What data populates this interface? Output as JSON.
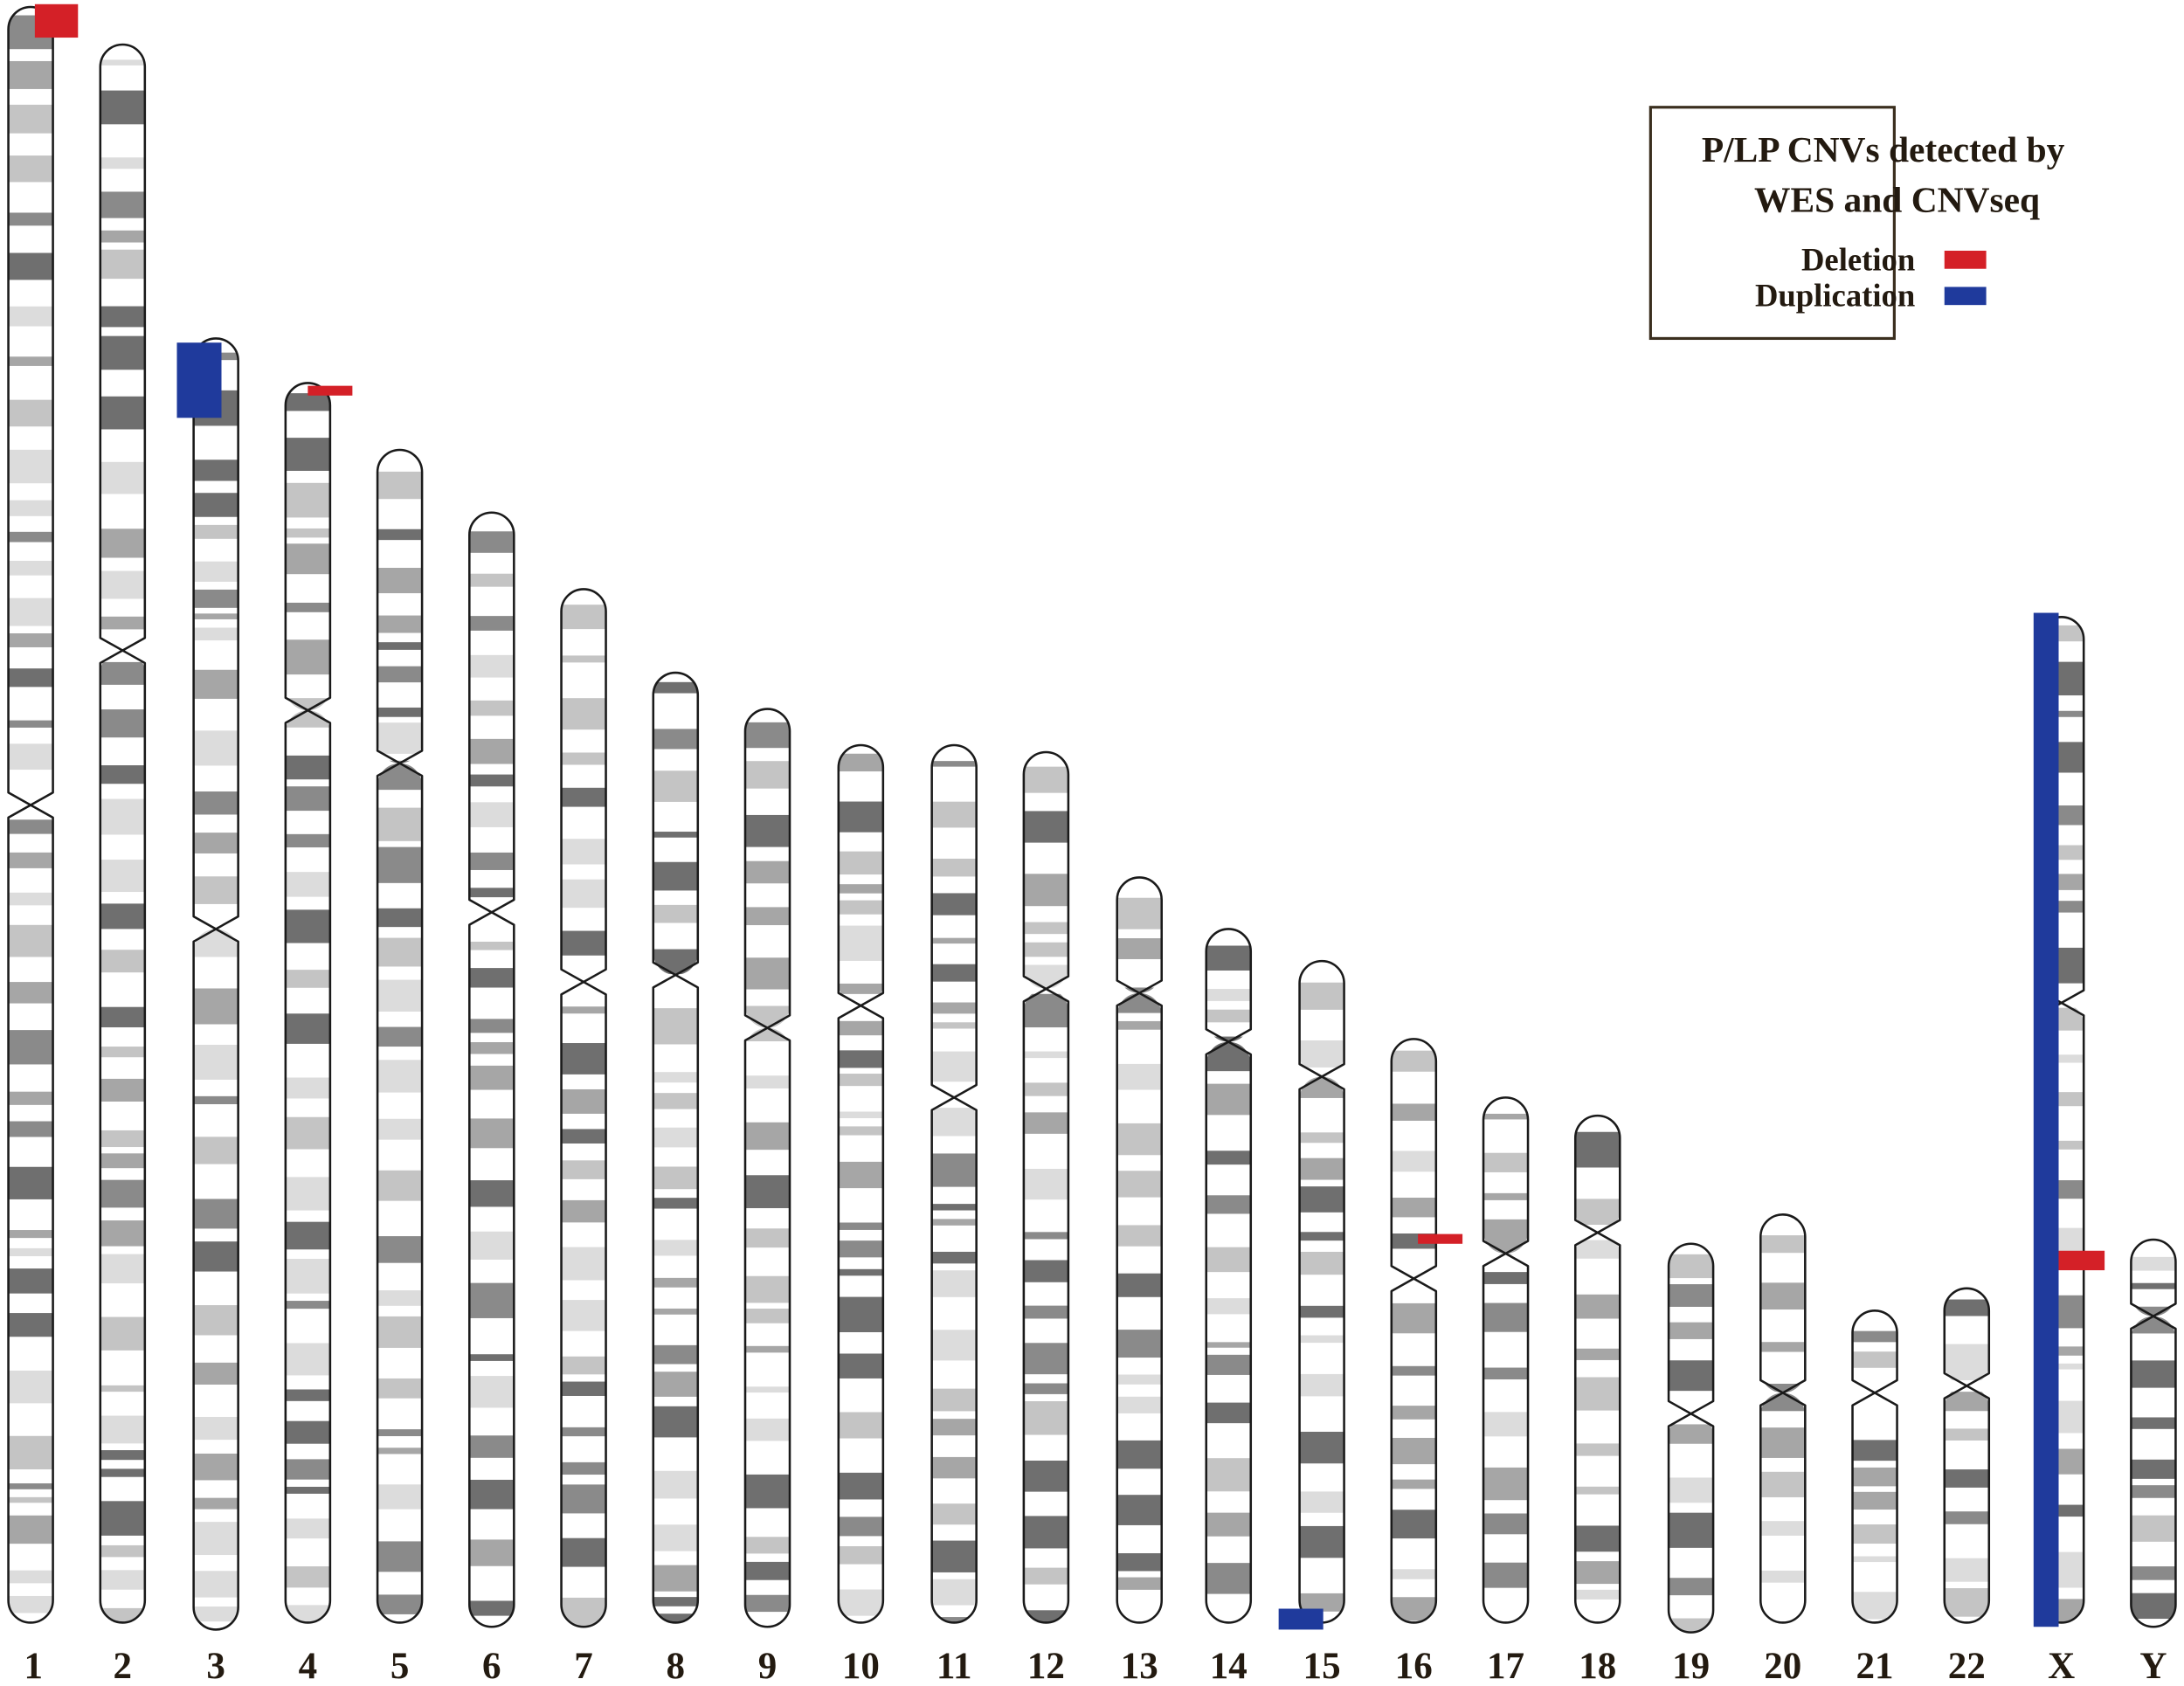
{
  "legend": {
    "title": [
      "P/LP CNVs detected by",
      "WES and CNVseq"
    ],
    "items": [
      {
        "label": "Deletion",
        "color": "#d42027"
      },
      {
        "label": "Duplication",
        "color": "#1f3a9c"
      }
    ]
  },
  "chromosomes": [
    {
      "label": "1"
    },
    {
      "label": "2"
    },
    {
      "label": "3"
    },
    {
      "label": "4"
    },
    {
      "label": "5"
    },
    {
      "label": "6"
    },
    {
      "label": "7"
    },
    {
      "label": "8"
    },
    {
      "label": "9"
    },
    {
      "label": "10"
    },
    {
      "label": "11"
    },
    {
      "label": "12"
    },
    {
      "label": "13"
    },
    {
      "label": "14"
    },
    {
      "label": "15"
    },
    {
      "label": "16"
    },
    {
      "label": "17"
    },
    {
      "label": "18"
    },
    {
      "label": "19"
    },
    {
      "label": "20"
    },
    {
      "label": "21"
    },
    {
      "label": "22"
    },
    {
      "label": "X"
    },
    {
      "label": "Y"
    }
  ]
}
